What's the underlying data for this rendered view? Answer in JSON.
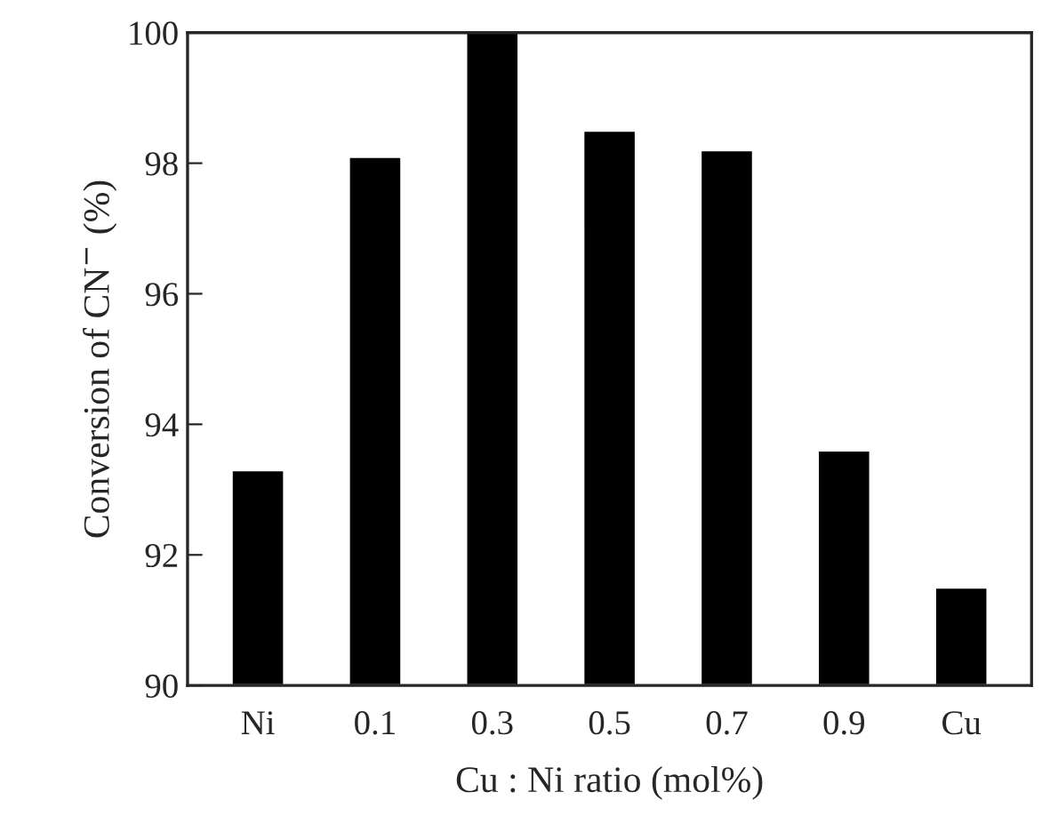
{
  "chart_data": {
    "type": "bar",
    "xlabel": "Cu : Ni ratio (mol%)",
    "ylabel": "Conversion of CN$^{−}$ (%)",
    "categories": [
      "Ni",
      "0.1",
      "0.3",
      "0.5",
      "0.7",
      "0.9",
      "Cu"
    ],
    "values": [
      93.3,
      98.1,
      100,
      98.5,
      98.2,
      93.6,
      91.5
    ],
    "color": "#000000",
    "ylim": [
      90,
      100
    ],
    "yticks": [
      90,
      92,
      94,
      96,
      98,
      100
    ],
    "grid": false,
    "legend": false
  }
}
